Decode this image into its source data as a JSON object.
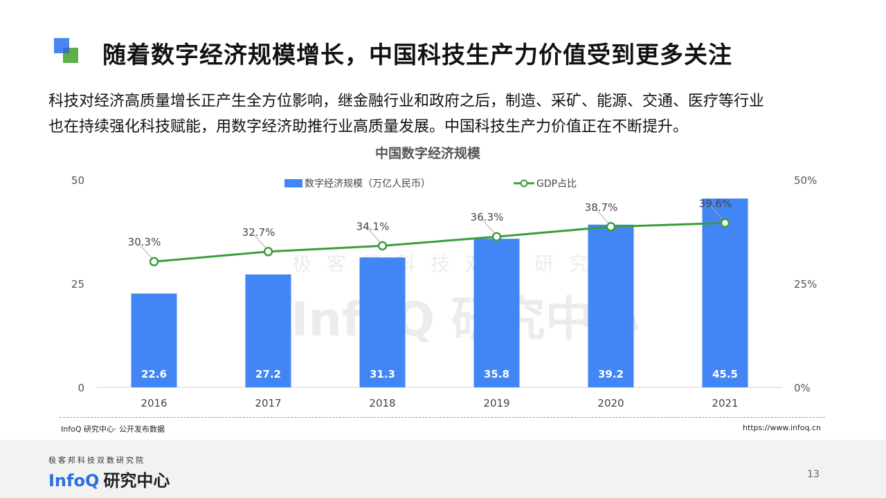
{
  "header": {
    "title": "随着数字经济规模增长，中国科技生产力价值受到更多关注"
  },
  "intro": {
    "line1": "科技对经济高质量增长正产生全方位影响，继金融行业和政府之后，制造、采矿、能源、交通、医疗等行业",
    "line2": "也在持续强化科技赋能，用数字经济助推行业高质量发展。中国科技生产力价值正在不断提升。"
  },
  "watermark": {
    "sub": "极客邦科技双数研究院",
    "main": "InfoQ 研究中心"
  },
  "chart_data": {
    "type": "bar",
    "title": "中国数字经济规模",
    "categories": [
      "2016",
      "2017",
      "2018",
      "2019",
      "2020",
      "2021"
    ],
    "series": [
      {
        "name": "数字经济规模（万亿人民币）",
        "type": "bar",
        "axis": "left",
        "values": [
          22.6,
          27.2,
          31.3,
          35.8,
          39.2,
          45.5
        ],
        "labels": [
          "22.6",
          "27.2",
          "31.3",
          "35.8",
          "39.2",
          "45.5"
        ]
      },
      {
        "name": "GDP占比",
        "type": "line",
        "axis": "right",
        "values": [
          30.3,
          32.7,
          34.1,
          36.3,
          38.7,
          39.6
        ],
        "labels": [
          "30.3%",
          "32.7%",
          "34.1%",
          "36.3%",
          "38.7%",
          "39.6%"
        ]
      }
    ],
    "ylim": [
      0,
      50
    ],
    "yticks": [
      "0",
      "25",
      "50"
    ],
    "y2lim": [
      0,
      50
    ],
    "y2ticks": [
      "0%",
      "25%",
      "50%"
    ],
    "legend_position": "top-center",
    "grid": false,
    "colors": {
      "bar": "#4285f4",
      "line": "#3a9d3a",
      "bar_label": "#ffffff"
    }
  },
  "footer": {
    "source": "InfoQ 研究中心· 公开发布数据",
    "url": "https://www.infoq.cn",
    "org": "极客邦科技双数研究院",
    "brand": "InfoQ",
    "brand_sub": "研究中心",
    "page": "13"
  }
}
